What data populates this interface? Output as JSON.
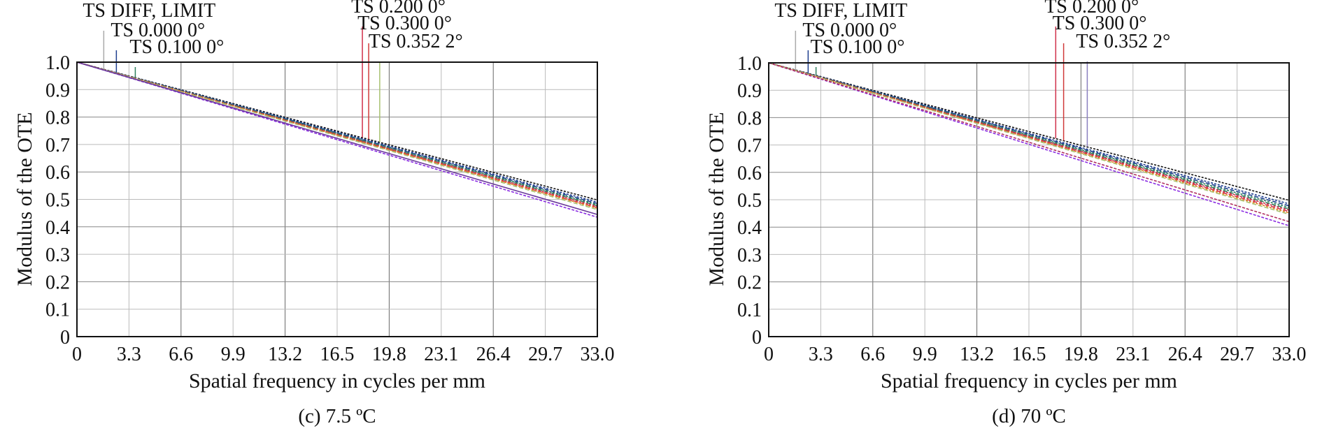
{
  "chart_data": [
    {
      "type": "line",
      "panel_caption": "(c) 7.5 ºC",
      "xlabel": "Spatial frequency in cycles per mm",
      "ylabel": "Modulus of the OTE",
      "xlim": [
        0,
        33.0
      ],
      "ylim": [
        0,
        1.0
      ],
      "x_ticks": [
        "0",
        "3.3",
        "6.6",
        "9.9",
        "13.2",
        "16.5",
        "19.8",
        "23.1",
        "26.4",
        "29.7",
        "33.0"
      ],
      "y_ticks": [
        "0",
        "0.1",
        "0.2",
        "0.3",
        "0.4",
        "0.5",
        "0.6",
        "0.7",
        "0.8",
        "0.9",
        "1.0"
      ],
      "grid": true,
      "legend": [
        {
          "label": "TS DIFF, LIMIT",
          "color": "#aaaaaa",
          "x": 1.7
        },
        {
          "label": "TS 0.000 0°",
          "color": "#1f3f8f",
          "x": 2.5
        },
        {
          "label": "TS 0.100 0°",
          "color": "#2f7f5f",
          "x": 3.7
        },
        {
          "label": "TS 0.200 0°",
          "color": "#d0304a",
          "x": 18.1
        },
        {
          "label": "TS 0.300 0°",
          "color": "#d03a3a",
          "x": 18.5
        },
        {
          "label": "TS 0.352 2°",
          "color": "#a8c070",
          "x": 19.2
        }
      ],
      "series": [
        {
          "name": "TS DIFF, LIMIT",
          "color": "#111111",
          "dash": "3,2",
          "x": [
            0,
            33.0
          ],
          "y": [
            1.0,
            0.498
          ]
        },
        {
          "name": "TS 0.000 0° T",
          "color": "#1f3f8f",
          "dash": "3,2",
          "x": [
            0,
            33.0
          ],
          "y": [
            1.0,
            0.49
          ]
        },
        {
          "name": "TS 0.000 0° S",
          "color": "#1f3f8f",
          "dash": "6,3",
          "x": [
            0,
            33.0
          ],
          "y": [
            1.0,
            0.485
          ]
        },
        {
          "name": "TS 0.100 0° T",
          "color": "#2f7f5f",
          "dash": "3,2",
          "x": [
            0,
            33.0
          ],
          "y": [
            1.0,
            0.481
          ]
        },
        {
          "name": "TS 0.100 0° S",
          "color": "#2f7f5f",
          "dash": "6,3",
          "x": [
            0,
            33.0
          ],
          "y": [
            1.0,
            0.477
          ]
        },
        {
          "name": "TS 0.200 0° T",
          "color": "#d0304a",
          "dash": "3,2",
          "x": [
            0,
            33.0
          ],
          "y": [
            1.0,
            0.474
          ]
        },
        {
          "name": "TS 0.200 0° S",
          "color": "#d0304a",
          "dash": "6,3",
          "x": [
            0,
            33.0
          ],
          "y": [
            1.0,
            0.47
          ]
        },
        {
          "name": "TS 0.300 0° T",
          "color": "#e08020",
          "dash": "3,2",
          "x": [
            0,
            33.0
          ],
          "y": [
            1.0,
            0.468
          ]
        },
        {
          "name": "TS 0.300 0° S",
          "color": "#a8c070",
          "dash": "6,3",
          "x": [
            0,
            33.0
          ],
          "y": [
            1.0,
            0.463
          ]
        },
        {
          "name": "TS 0.352 2° T",
          "color": "#8a2be2",
          "dash": "4,2",
          "x": [
            0,
            33.0
          ],
          "y": [
            1.0,
            0.435
          ]
        },
        {
          "name": "TS 0.352 2° S",
          "color": "#6a3a9a",
          "dash": "none",
          "x": [
            0,
            33.0
          ],
          "y": [
            1.0,
            0.445
          ]
        }
      ]
    },
    {
      "type": "line",
      "panel_caption": "(d) 70 ºC",
      "xlabel": "Spatial frequency in cycles per mm",
      "ylabel": "Modulus of the OTE",
      "xlim": [
        0,
        33.0
      ],
      "ylim": [
        0,
        1.0
      ],
      "x_ticks": [
        "0",
        "3.3",
        "6.6",
        "9.9",
        "13.2",
        "16.5",
        "19.8",
        "23.1",
        "26.4",
        "29.7",
        "33.0"
      ],
      "y_ticks": [
        "0",
        "0.1",
        "0.2",
        "0.3",
        "0.4",
        "0.5",
        "0.6",
        "0.7",
        "0.8",
        "0.9",
        "1.0"
      ],
      "grid": true,
      "legend": [
        {
          "label": "TS DIFF, LIMIT",
          "color": "#aaaaaa",
          "x": 1.7
        },
        {
          "label": "TS 0.000 0°",
          "color": "#1f3f8f",
          "x": 2.5
        },
        {
          "label": "TS 0.100 0°",
          "color": "#2f7f5f",
          "x": 3.0
        },
        {
          "label": "TS 0.200 0°",
          "color": "#d0304a",
          "x": 18.2
        },
        {
          "label": "TS 0.300 0°",
          "color": "#d03a3a",
          "x": 18.7
        },
        {
          "label": "TS 0.352 2°",
          "color": "#8a7fbf",
          "x": 20.2
        }
      ],
      "series": [
        {
          "name": "TS DIFF, LIMIT",
          "color": "#111111",
          "dash": "3,2",
          "x": [
            0,
            33.0
          ],
          "y": [
            1.0,
            0.498
          ]
        },
        {
          "name": "TS 0.000 0° T",
          "color": "#1f3f8f",
          "dash": "3,2",
          "x": [
            0,
            33.0
          ],
          "y": [
            1.0,
            0.485
          ]
        },
        {
          "name": "TS 0.000 0° S",
          "color": "#1f3f8f",
          "dash": "6,3",
          "x": [
            0,
            33.0
          ],
          "y": [
            1.0,
            0.478
          ]
        },
        {
          "name": "TS 0.100 0° T",
          "color": "#2f7f5f",
          "dash": "3,2",
          "x": [
            0,
            33.0
          ],
          "y": [
            1.0,
            0.472
          ]
        },
        {
          "name": "TS 0.100 0° S",
          "color": "#2f7f5f",
          "dash": "6,3",
          "x": [
            0,
            33.0
          ],
          "y": [
            1.0,
            0.466
          ]
        },
        {
          "name": "TS 0.200 0° T",
          "color": "#d0304a",
          "dash": "3,2",
          "x": [
            0,
            33.0
          ],
          "y": [
            1.0,
            0.462
          ]
        },
        {
          "name": "TS 0.200 0° S",
          "color": "#d0304a",
          "dash": "6,3",
          "x": [
            0,
            33.0
          ],
          "y": [
            1.0,
            0.457
          ]
        },
        {
          "name": "TS 0.300 0° T",
          "color": "#e08020",
          "dash": "3,2",
          "x": [
            0,
            33.0
          ],
          "y": [
            1.0,
            0.452
          ]
        },
        {
          "name": "TS 0.300 0° S",
          "color": "#a8c070",
          "dash": "6,3",
          "x": [
            0,
            33.0
          ],
          "y": [
            1.0,
            0.447
          ]
        },
        {
          "name": "TS 0.352 2° T",
          "color": "#8a2be2",
          "dash": "4,2",
          "x": [
            0,
            33.0
          ],
          "y": [
            1.0,
            0.405
          ]
        },
        {
          "name": "TS 0.352 2° S",
          "color": "#b03060",
          "dash": "4,2",
          "x": [
            0,
            33.0
          ],
          "y": [
            1.0,
            0.42
          ]
        }
      ]
    }
  ]
}
